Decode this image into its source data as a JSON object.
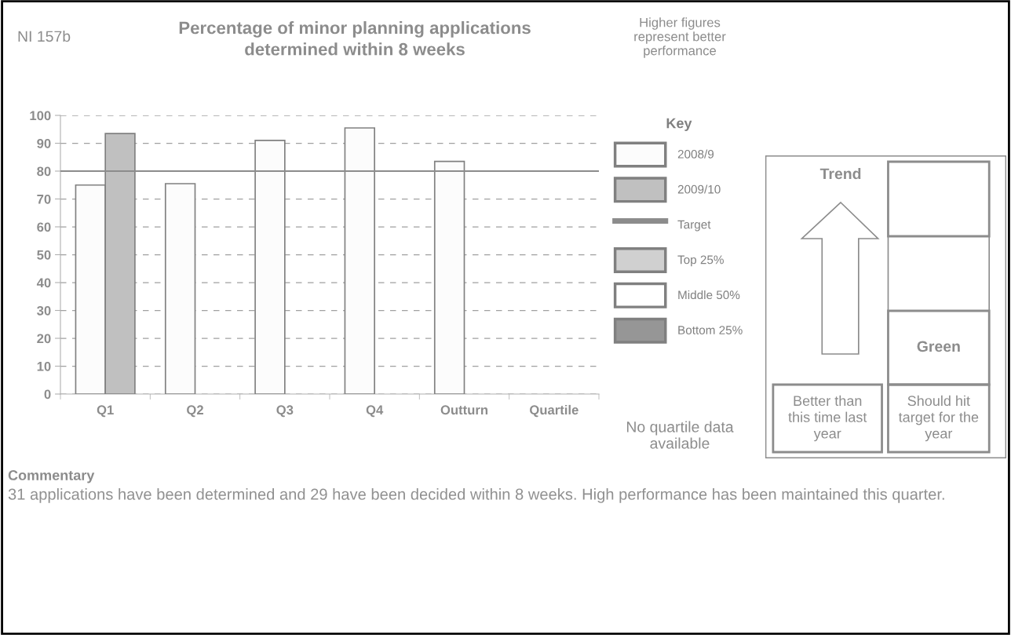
{
  "chart_data": [
    {
      "type": "bar",
      "title": "Percentage of minor planning applications determined within 8 weeks",
      "categories": [
        "Q1",
        "Q2",
        "Q3",
        "Q4",
        "Outturn",
        "Quartile"
      ],
      "series": [
        {
          "name": "2008/9",
          "color": "#fcfcfc",
          "values": [
            75,
            75.5,
            91,
            95.5,
            83.5,
            null
          ]
        },
        {
          "name": "2009/10",
          "color": "#c0c0c0",
          "values": [
            93.5,
            null,
            null,
            null,
            null,
            null
          ]
        },
        {
          "name": "Top 25%",
          "color": "#d0d0d0",
          "values": [
            null,
            null,
            null,
            null,
            null,
            null
          ]
        },
        {
          "name": "Middle 50%",
          "color": "#ffffff",
          "values": [
            null,
            null,
            null,
            null,
            null,
            null
          ]
        },
        {
          "name": "Bottom 25%",
          "color": "#969696",
          "values": [
            null,
            null,
            null,
            null,
            null,
            null
          ]
        }
      ],
      "ylim": [
        0,
        100
      ],
      "yticks": [
        0,
        10,
        20,
        30,
        40,
        50,
        60,
        70,
        80,
        90,
        100
      ],
      "grid": "y",
      "legend": "right",
      "legend_title": "Key",
      "ref_lines": [
        {
          "axis": "y",
          "value": 80,
          "label": "Target",
          "color": "#8c8c8c"
        }
      ],
      "annotations": [
        "NI 157b",
        "Higher figures represent better performance",
        "No quartile data available",
        "Commentary",
        "31 applications have been determined and 29 have been decided within 8 weeks. High performance has been maintained this quarter."
      ]
    },
    {
      "type": "other",
      "title": "Trend",
      "annotations": [
        "Green",
        "Better than this time last year",
        "Should hit target for the year"
      ]
    }
  ]
}
